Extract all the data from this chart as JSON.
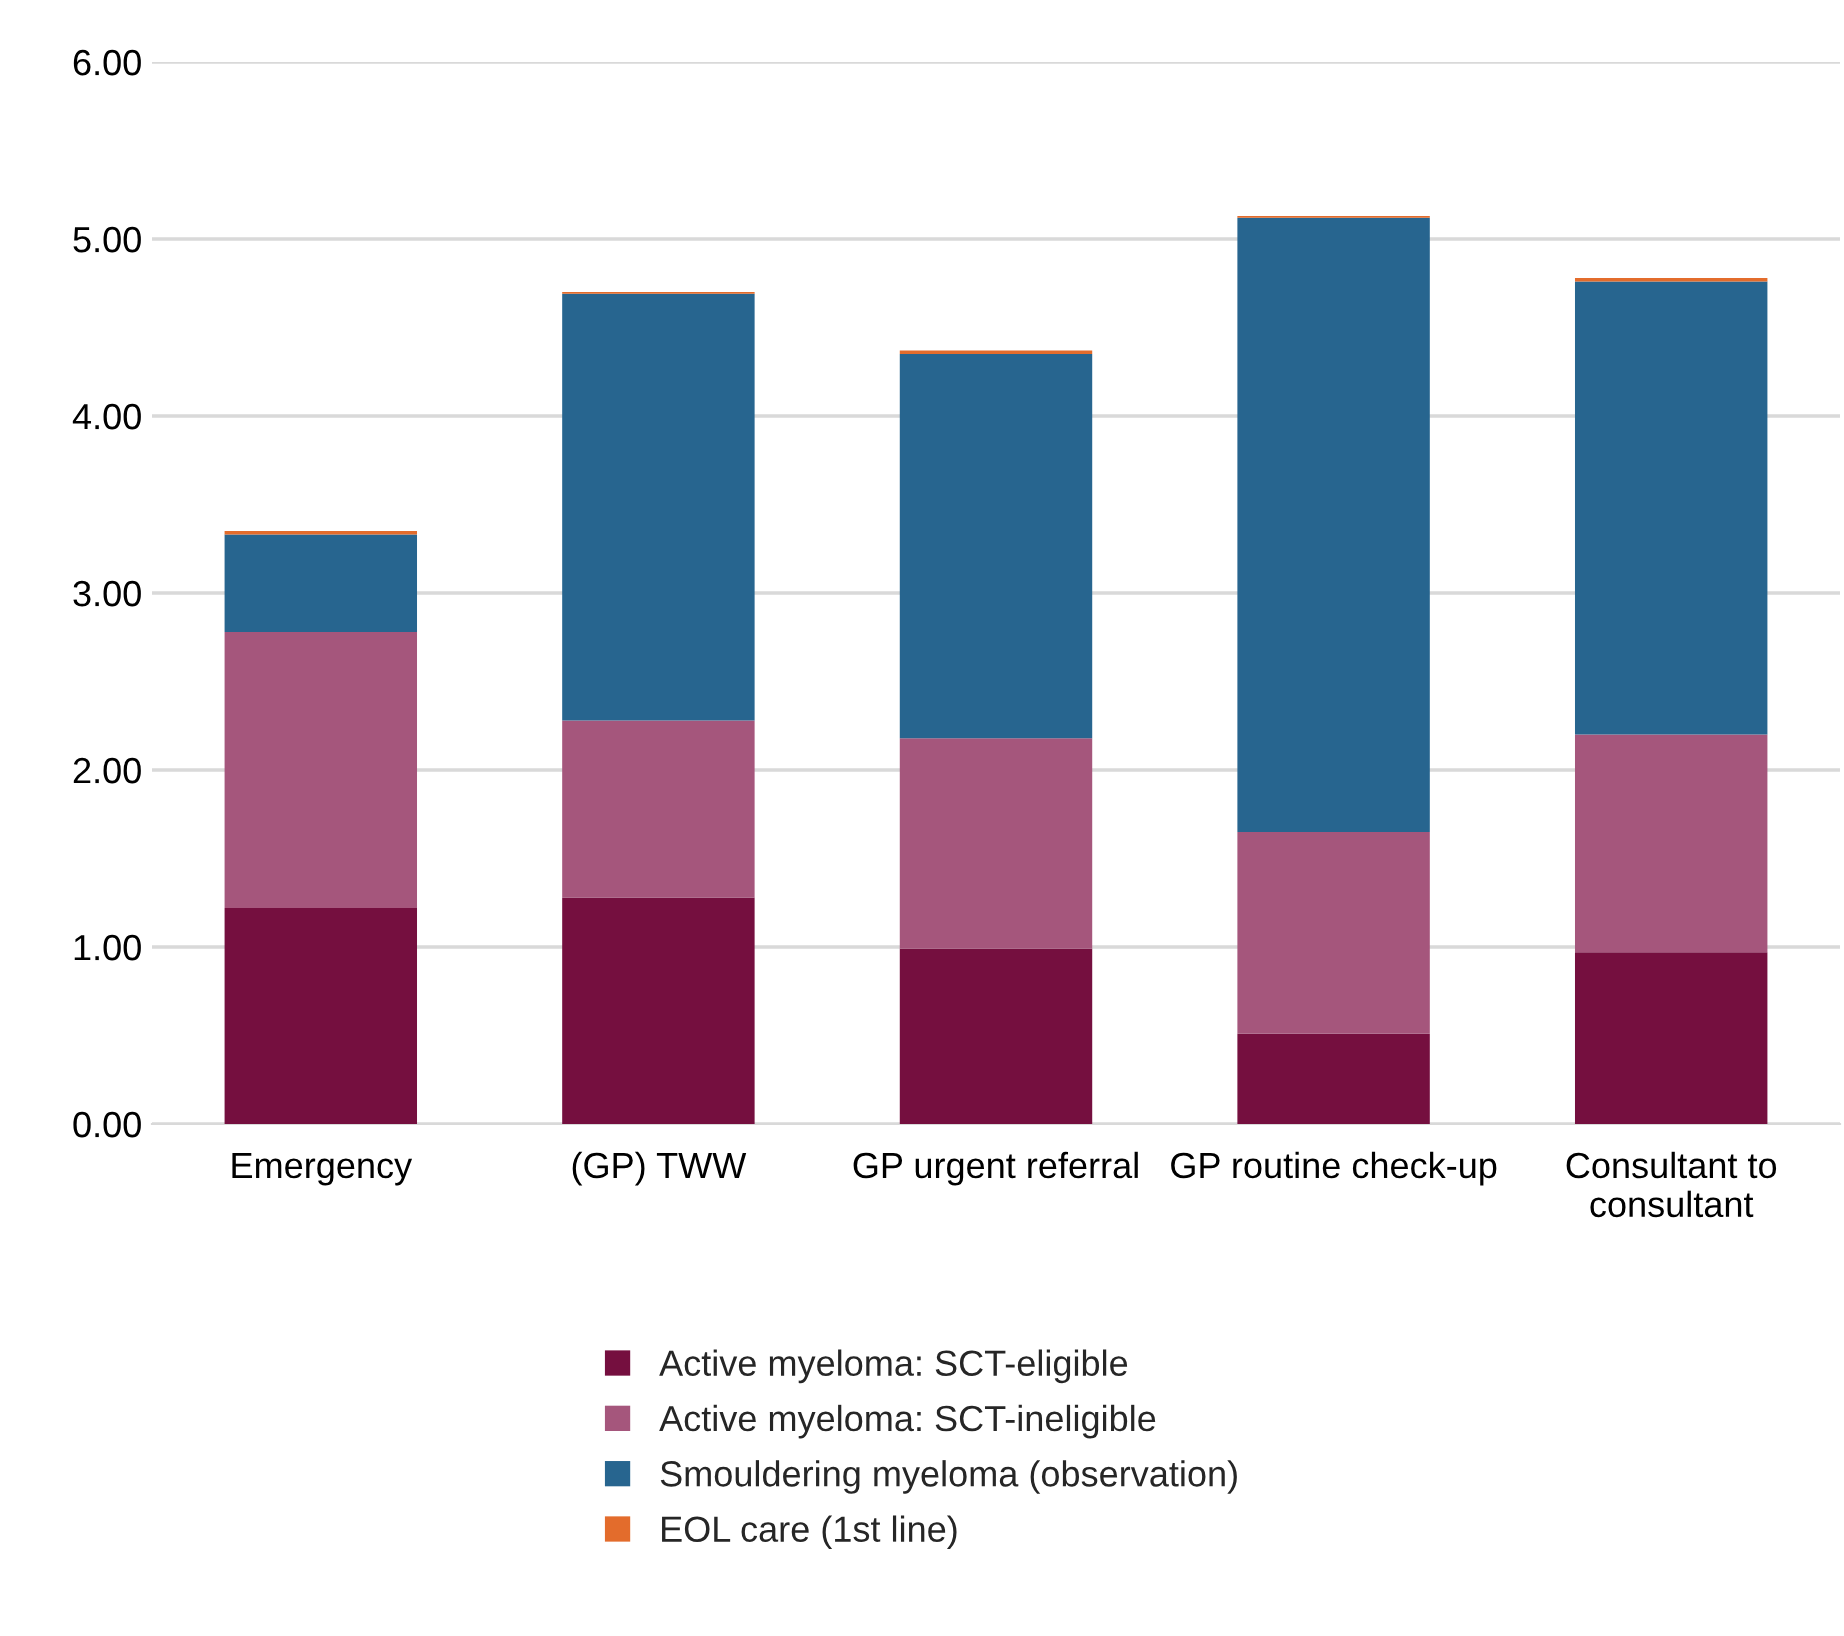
{
  "chart_data": {
    "type": "bar",
    "stacked": true,
    "categories": [
      "Emergency",
      "(GP) TWW",
      "GP urgent referral",
      "GP routine check-up",
      "Consultant to consultant"
    ],
    "series": [
      {
        "name": "Active myeloma: SCT-eligible",
        "color": "#750f3f",
        "values": [
          1.22,
          1.28,
          0.99,
          0.51,
          0.97
        ]
      },
      {
        "name": "Active myeloma: SCT-ineligible",
        "color": "#a5567c",
        "values": [
          1.56,
          1.0,
          1.19,
          1.14,
          1.23
        ]
      },
      {
        "name": "Smouldering myeloma (observation)",
        "color": "#27658f",
        "values": [
          0.55,
          2.41,
          2.17,
          3.47,
          2.56
        ]
      },
      {
        "name": "EOL care (1st line)",
        "color": "#e36c2c",
        "values": [
          0.02,
          0.01,
          0.02,
          0.01,
          0.02
        ]
      }
    ],
    "ylim": [
      0,
      6
    ],
    "yticks": [
      {
        "value": 0,
        "label": "0.00"
      },
      {
        "value": 1,
        "label": "1.00"
      },
      {
        "value": 2,
        "label": "2.00"
      },
      {
        "value": 3,
        "label": "3.00"
      },
      {
        "value": 4,
        "label": "4.00"
      },
      {
        "value": 5,
        "label": "5.00"
      },
      {
        "value": 6,
        "label": "6.00"
      }
    ],
    "grid": "y",
    "legend": "bottom"
  }
}
